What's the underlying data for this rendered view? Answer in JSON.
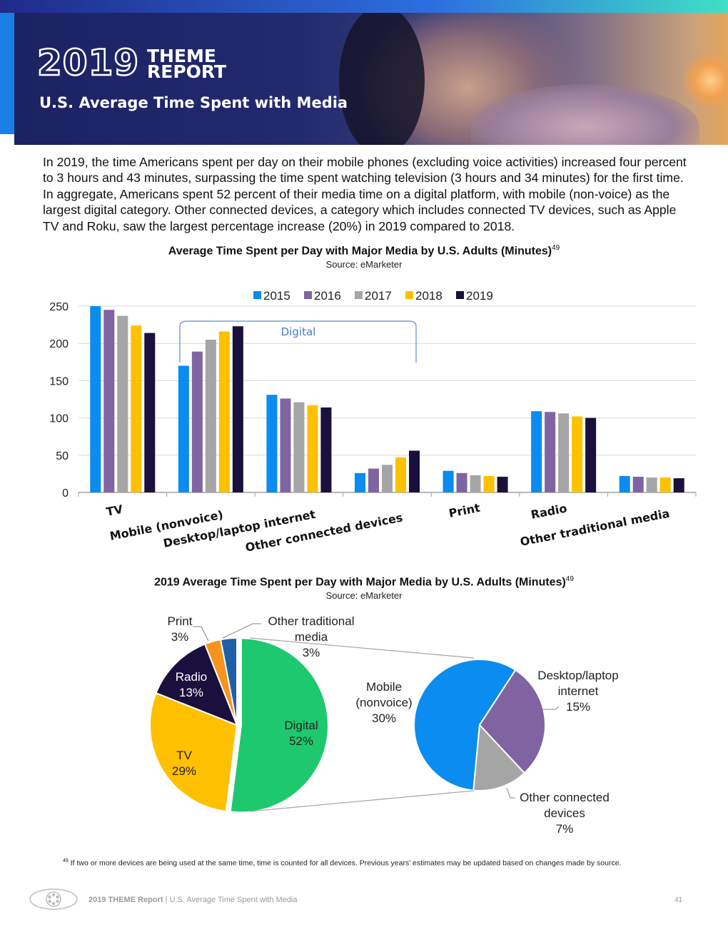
{
  "header": {
    "year": "2019",
    "word1": "THEME",
    "word2": "REPORT",
    "subtitle": "U.S. Average Time Spent with Media"
  },
  "intro": "In 2019, the time Americans spent per day on their mobile phones (excluding voice activities) increased four percent to 3 hours and 43 minutes, surpassing the time spent watching television (3 hours and 34 minutes) for the first time. In aggregate, Americans spent 52 percent of their media time on a digital platform, with mobile (non-voice) as the largest digital category. Other connected devices, a category which includes connected TV devices, such as Apple TV and Roku, saw the largest percentage increase (20%) in 2019 compared to 2018.",
  "colors": {
    "2015": "#0a8cf0",
    "2016": "#8064a2",
    "2017": "#a5a5a5",
    "2018": "#ffc000",
    "2019": "#1a0f3d",
    "digital": "#1ec86e",
    "tv": "#ffc000",
    "radio": "#1a0f3d",
    "print": "#f7941d",
    "other_traditional": "#1f5fa8",
    "mobile": "#0a8cf0",
    "desktop": "#8064a2",
    "other_connected": "#a5a5a5",
    "bracket": "#5b8fd0"
  },
  "chart_data": [
    {
      "type": "bar",
      "title": "Average Time Spent per Day with Major Media by U.S. Adults (Minutes)",
      "title_sup": "49",
      "source": "Source: eMarketer",
      "categories": [
        "TV",
        "Mobile (nonvoice)",
        "Desktop/laptop internet",
        "Other connected devices",
        "Print",
        "Radio",
        "Other traditional media"
      ],
      "series": [
        {
          "name": "2015",
          "values": [
            250,
            170,
            131,
            26,
            29,
            109,
            22
          ]
        },
        {
          "name": "2016",
          "values": [
            245,
            189,
            126,
            32,
            26,
            108,
            21
          ]
        },
        {
          "name": "2017",
          "values": [
            237,
            205,
            121,
            37,
            23,
            106,
            20
          ]
        },
        {
          "name": "2018",
          "values": [
            224,
            216,
            117,
            47,
            22,
            102,
            20
          ]
        },
        {
          "name": "2019",
          "values": [
            214,
            223,
            114,
            56,
            21,
            100,
            19
          ]
        }
      ],
      "ylim": [
        0,
        250
      ],
      "yticks": [
        0,
        50,
        100,
        150,
        200,
        250
      ],
      "grid": true,
      "legend": "top",
      "annotation": "Digital"
    },
    {
      "type": "pie",
      "title": "2019 Average Time Spent per Day with Major Media by U.S. Adults (Minutes)",
      "title_sup": "49",
      "source": "Source: eMarketer",
      "slices": [
        {
          "label": "Digital",
          "pct": "52%",
          "value": 52
        },
        {
          "label": "TV",
          "pct": "29%",
          "value": 29
        },
        {
          "label": "Radio",
          "pct": "13%",
          "value": 13
        },
        {
          "label": "Print",
          "pct": "3%",
          "value": 3
        },
        {
          "label": "Other traditional media",
          "pct": "3%",
          "value": 3
        }
      ],
      "breakdown": [
        {
          "label": "Mobile (nonvoice)",
          "pct": "30%",
          "value": 30
        },
        {
          "label": "Desktop/laptop internet",
          "pct": "15%",
          "value": 15
        },
        {
          "label": "Other connected devices",
          "pct": "7%",
          "value": 7
        }
      ]
    }
  ],
  "footnote": {
    "num": "49",
    "text": "If two or more devices are being used at the same time, time is counted for all devices. Previous years’ estimates may be updated based on changes made by source."
  },
  "footer": {
    "report": "2019 THEME Report",
    "separator": " | ",
    "section": "U.S. Average Time Spent with Media",
    "page": "41"
  }
}
